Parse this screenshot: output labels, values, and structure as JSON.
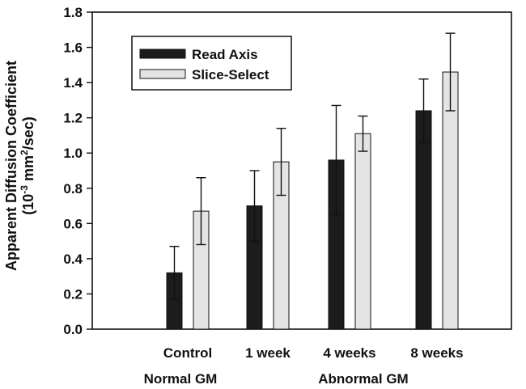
{
  "chart_data": {
    "type": "bar",
    "title": "",
    "categories": [
      "Control",
      "1 week",
      "4 weeks",
      "8 weeks"
    ],
    "groups": [
      {
        "label": "Normal GM",
        "categories": [
          "Control"
        ]
      },
      {
        "label": "Abnormal GM",
        "categories": [
          "1 week",
          "4 weeks",
          "8 weeks"
        ]
      }
    ],
    "series": [
      {
        "name": "Read Axis",
        "color": "#1c1c1c",
        "values": [
          0.32,
          0.7,
          0.96,
          1.24
        ],
        "errors": [
          0.15,
          0.2,
          0.31,
          0.18
        ]
      },
      {
        "name": "Slice-Select",
        "color": "#e4e4e4",
        "values": [
          0.67,
          0.95,
          1.11,
          1.46
        ],
        "errors": [
          0.19,
          0.19,
          0.1,
          0.22
        ]
      }
    ],
    "ylabel_line1": "Apparent Diffusion Coefficient",
    "ylabel_line2_prefix": "(10",
    "ylabel_line2_exp1": "-3",
    "ylabel_line2_mid": " mm",
    "ylabel_line2_exp2": "2",
    "ylabel_line2_suffix": "/sec)",
    "ylim": [
      0.0,
      1.8
    ],
    "yticks": [
      "0.0",
      "0.2",
      "0.4",
      "0.6",
      "0.8",
      "1.0",
      "1.2",
      "1.4",
      "1.6",
      "1.8"
    ],
    "legend_position": "top-left",
    "grid": false
  }
}
